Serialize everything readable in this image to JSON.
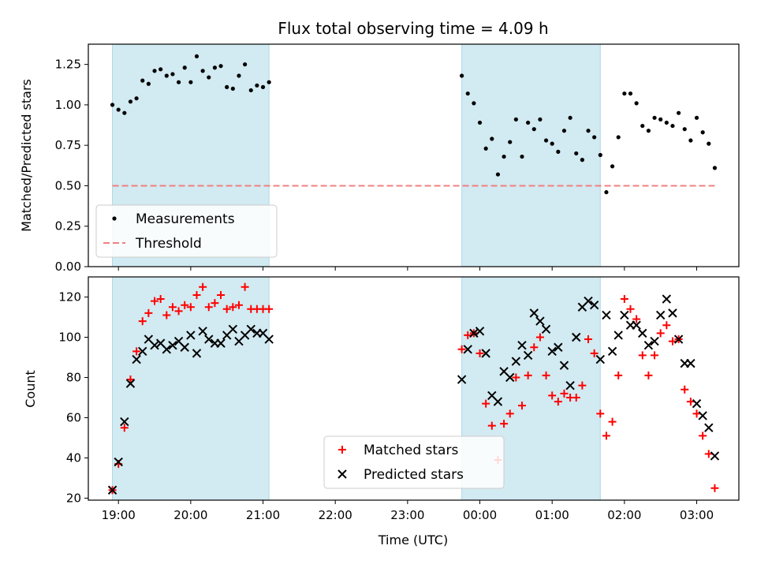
{
  "chart_data": [
    {
      "type": "scatter",
      "title": "Flux total observing time = 4.09 h",
      "xlabel": "",
      "ylabel": "Matched/Predicted stars",
      "ylim": [
        0.0,
        1.375
      ],
      "yticks": [
        "0.00",
        "0.25",
        "0.50",
        "0.75",
        "1.00",
        "1.25"
      ],
      "grid": false,
      "legend_position": "lower-left",
      "shaded_intervals": [
        [
          "18:55",
          "21:05"
        ],
        [
          "23:45",
          "01:40"
        ]
      ],
      "series": [
        {
          "name": "Measurements",
          "color": "#000000",
          "marker": "dot",
          "x": [
            "18:55",
            "19:00",
            "19:05",
            "19:10",
            "19:15",
            "19:20",
            "19:25",
            "19:30",
            "19:35",
            "19:40",
            "19:45",
            "19:50",
            "19:55",
            "20:00",
            "20:05",
            "20:10",
            "20:15",
            "20:20",
            "20:25",
            "20:30",
            "20:35",
            "20:40",
            "20:45",
            "20:50",
            "20:55",
            "21:00",
            "21:05",
            "23:45",
            "23:50",
            "23:55",
            "00:00",
            "00:05",
            "00:10",
            "00:15",
            "00:20",
            "00:25",
            "00:30",
            "00:35",
            "00:40",
            "00:45",
            "00:50",
            "00:55",
            "01:00",
            "01:05",
            "01:10",
            "01:15",
            "01:20",
            "01:25",
            "01:30",
            "01:35",
            "01:40",
            "01:45",
            "01:50",
            "01:55",
            "02:00",
            "02:05",
            "02:10",
            "02:15",
            "02:20",
            "02:25",
            "02:30",
            "02:35",
            "02:40",
            "02:45",
            "02:50",
            "02:55",
            "03:00",
            "03:05",
            "03:10",
            "03:15"
          ],
          "values": [
            1.0,
            0.97,
            0.95,
            1.02,
            1.04,
            1.15,
            1.13,
            1.21,
            1.22,
            1.18,
            1.19,
            1.14,
            1.23,
            1.14,
            1.3,
            1.21,
            1.17,
            1.23,
            1.24,
            1.11,
            1.1,
            1.18,
            1.25,
            1.09,
            1.12,
            1.11,
            1.14,
            1.18,
            1.07,
            1.01,
            0.89,
            0.73,
            0.79,
            0.57,
            0.68,
            0.77,
            0.91,
            0.68,
            0.89,
            0.85,
            0.91,
            0.78,
            0.76,
            0.71,
            0.84,
            0.92,
            0.7,
            0.66,
            0.84,
            0.8,
            0.69,
            0.46,
            0.62,
            0.8,
            1.07,
            1.07,
            1.01,
            0.87,
            0.84,
            0.92,
            0.91,
            0.89,
            0.87,
            0.95,
            0.85,
            0.78,
            0.92,
            0.83,
            0.76,
            0.61
          ]
        },
        {
          "name": "Threshold",
          "color": "#f08080",
          "style": "dashed",
          "x": [
            "18:55",
            "03:15"
          ],
          "values": [
            0.5,
            0.5
          ]
        }
      ]
    },
    {
      "type": "scatter",
      "title": "",
      "xlabel": "Time (UTC)",
      "ylabel": "Count",
      "ylim": [
        19,
        130
      ],
      "yticks": [
        "20",
        "40",
        "60",
        "80",
        "100",
        "120"
      ],
      "xticks": [
        "19:00",
        "20:00",
        "21:00",
        "22:00",
        "23:00",
        "00:00",
        "01:00",
        "02:00",
        "03:00"
      ],
      "grid": false,
      "legend_position": "lower-center",
      "shaded_intervals": [
        [
          "18:55",
          "21:05"
        ],
        [
          "23:45",
          "01:40"
        ]
      ],
      "series": [
        {
          "name": "Matched stars",
          "color": "#ff0000",
          "marker": "plus",
          "x": [
            "18:55",
            "19:00",
            "19:05",
            "19:10",
            "19:15",
            "19:20",
            "19:25",
            "19:30",
            "19:35",
            "19:40",
            "19:45",
            "19:50",
            "19:55",
            "20:00",
            "20:05",
            "20:10",
            "20:15",
            "20:20",
            "20:25",
            "20:30",
            "20:35",
            "20:40",
            "20:45",
            "20:50",
            "20:55",
            "21:00",
            "21:05",
            "23:45",
            "23:50",
            "23:55",
            "00:00",
            "00:05",
            "00:10",
            "00:15",
            "00:20",
            "00:25",
            "00:30",
            "00:35",
            "00:40",
            "00:45",
            "00:50",
            "00:55",
            "01:00",
            "01:05",
            "01:10",
            "01:15",
            "01:20",
            "01:25",
            "01:30",
            "01:35",
            "01:40",
            "01:45",
            "01:50",
            "01:55",
            "02:00",
            "02:05",
            "02:10",
            "02:15",
            "02:20",
            "02:25",
            "02:30",
            "02:35",
            "02:40",
            "02:45",
            "02:50",
            "02:55",
            "03:00",
            "03:05",
            "03:10",
            "03:15"
          ],
          "values": [
            24,
            37,
            55,
            79,
            93,
            108,
            112,
            118,
            119,
            111,
            115,
            113,
            116,
            115,
            121,
            125,
            115,
            117,
            121,
            114,
            115,
            116,
            125,
            114,
            114,
            114,
            114,
            94,
            101,
            102,
            92,
            67,
            56,
            39,
            57,
            62,
            80,
            66,
            81,
            95,
            100,
            81,
            71,
            68,
            72,
            70,
            70,
            76,
            99,
            92,
            62,
            51,
            58,
            81,
            119,
            114,
            109,
            91,
            81,
            91,
            102,
            106,
            98,
            99,
            74,
            68,
            62,
            51,
            42,
            25
          ]
        },
        {
          "name": "Predicted stars",
          "color": "#000000",
          "marker": "x",
          "x": [
            "18:55",
            "19:00",
            "19:05",
            "19:10",
            "19:15",
            "19:20",
            "19:25",
            "19:30",
            "19:35",
            "19:40",
            "19:45",
            "19:50",
            "19:55",
            "20:00",
            "20:05",
            "20:10",
            "20:15",
            "20:20",
            "20:25",
            "20:30",
            "20:35",
            "20:40",
            "20:45",
            "20:50",
            "20:55",
            "21:00",
            "21:05",
            "23:45",
            "23:50",
            "23:55",
            "00:00",
            "00:05",
            "00:10",
            "00:15",
            "00:20",
            "00:25",
            "00:30",
            "00:35",
            "00:40",
            "00:45",
            "00:50",
            "00:55",
            "01:00",
            "01:05",
            "01:10",
            "01:15",
            "01:20",
            "01:25",
            "01:30",
            "01:35",
            "01:40",
            "01:45",
            "01:50",
            "01:55",
            "02:00",
            "02:05",
            "02:10",
            "02:15",
            "02:20",
            "02:25",
            "02:30",
            "02:35",
            "02:40",
            "02:45",
            "02:50",
            "02:55",
            "03:00",
            "03:05",
            "03:10",
            "03:15"
          ],
          "values": [
            24,
            38,
            58,
            77,
            89,
            93,
            99,
            96,
            97,
            94,
            96,
            98,
            95,
            101,
            92,
            103,
            99,
            97,
            97,
            101,
            104,
            98,
            101,
            104,
            102,
            102,
            99,
            79,
            94,
            102,
            103,
            92,
            71,
            68,
            83,
            80,
            88,
            96,
            91,
            112,
            108,
            104,
            93,
            95,
            86,
            76,
            100,
            115,
            118,
            116,
            89,
            111,
            93,
            101,
            111,
            106,
            106,
            102,
            96,
            98,
            111,
            119,
            112,
            99,
            87,
            87,
            67,
            61,
            55,
            41
          ]
        }
      ]
    }
  ]
}
